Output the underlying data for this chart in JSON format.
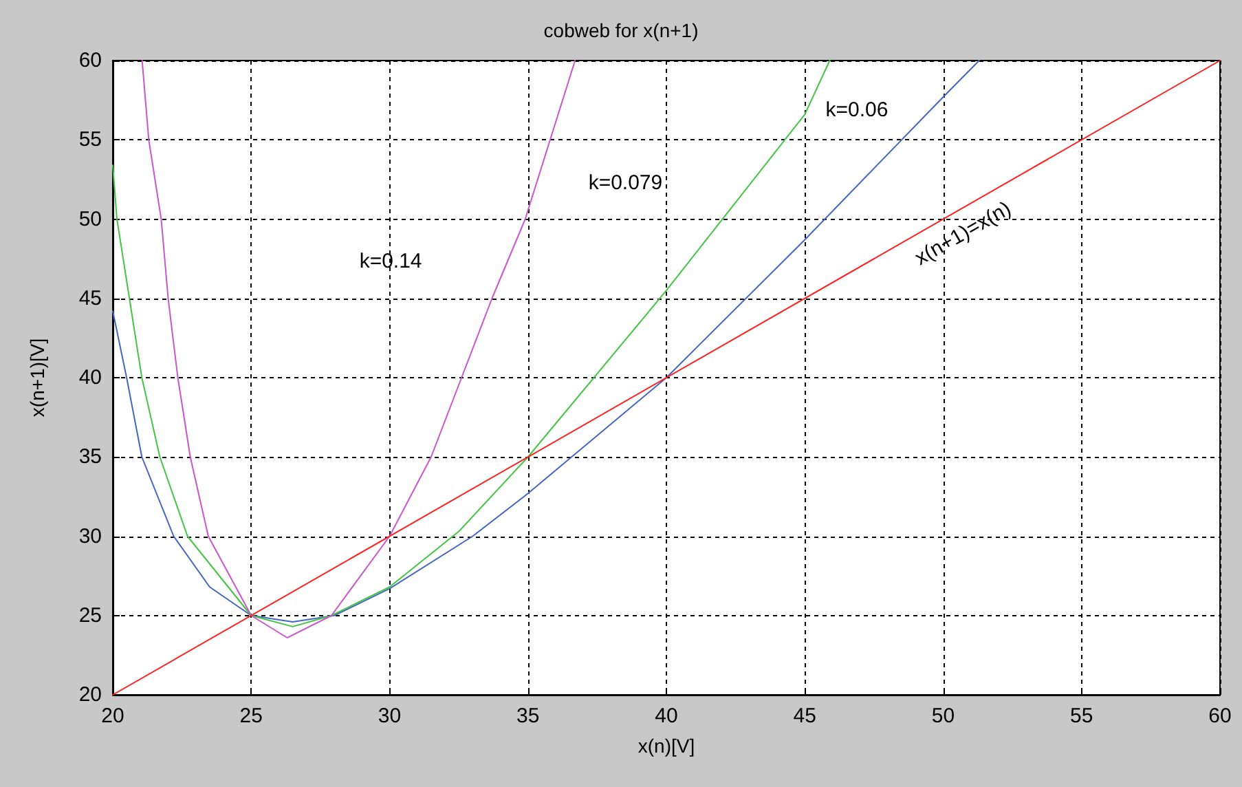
{
  "chart_data": {
    "type": "line",
    "title": "cobweb for x(n+1)",
    "xlabel": "x(n)[V]",
    "ylabel": "x(n+1)[V]",
    "xlim": [
      20,
      60
    ],
    "ylim": [
      20,
      60
    ],
    "xticks": [
      20,
      25,
      30,
      35,
      40,
      45,
      50,
      55,
      60
    ],
    "yticks": [
      20,
      25,
      30,
      35,
      40,
      45,
      50,
      55,
      60
    ],
    "grid": true,
    "line_style": "solid",
    "marker": "none",
    "series": [
      {
        "color": "#4466c4",
        "x": [
          20,
          20.5,
          21.05,
          22.2,
          23.5,
          25,
          26.5,
          28,
          30,
          33,
          35,
          40,
          45,
          50,
          51.3
        ],
        "values": [
          44.2,
          40,
          35,
          30,
          26.8,
          25,
          24.6,
          25,
          26.7,
          30,
          32.7,
          40,
          48.7,
          57.7,
          60
        ]
      },
      {
        "color": "#44c444",
        "x": [
          20,
          20.15,
          20.6,
          21.05,
          21.7,
          22.7,
          25,
          26.5,
          27.9,
          30,
          32.5,
          35,
          40,
          45,
          45.9
        ],
        "values": [
          53.4,
          50,
          45,
          40,
          35,
          30,
          25,
          24.3,
          25,
          26.8,
          30.3,
          35,
          45.5,
          56.6,
          60
        ]
      },
      {
        "color": "#cc55cc",
        "x": [
          21.06,
          21.3,
          21.75,
          22,
          22.35,
          22.8,
          23.45,
          25,
          26.3,
          27.9,
          30,
          31.5,
          32.6,
          33.7,
          34.9,
          36.7
        ],
        "values": [
          60,
          55,
          50,
          45,
          40,
          35,
          30,
          25,
          23.6,
          25,
          30,
          35,
          40,
          45,
          50,
          60
        ]
      },
      {
        "color": "#ff2020",
        "x": [
          20,
          60
        ],
        "values": [
          20,
          60
        ]
      }
    ],
    "annotations": [
      "k=0.14",
      "k=0.079",
      "k=0.06",
      "x(n+1)=x(n)"
    ]
  }
}
